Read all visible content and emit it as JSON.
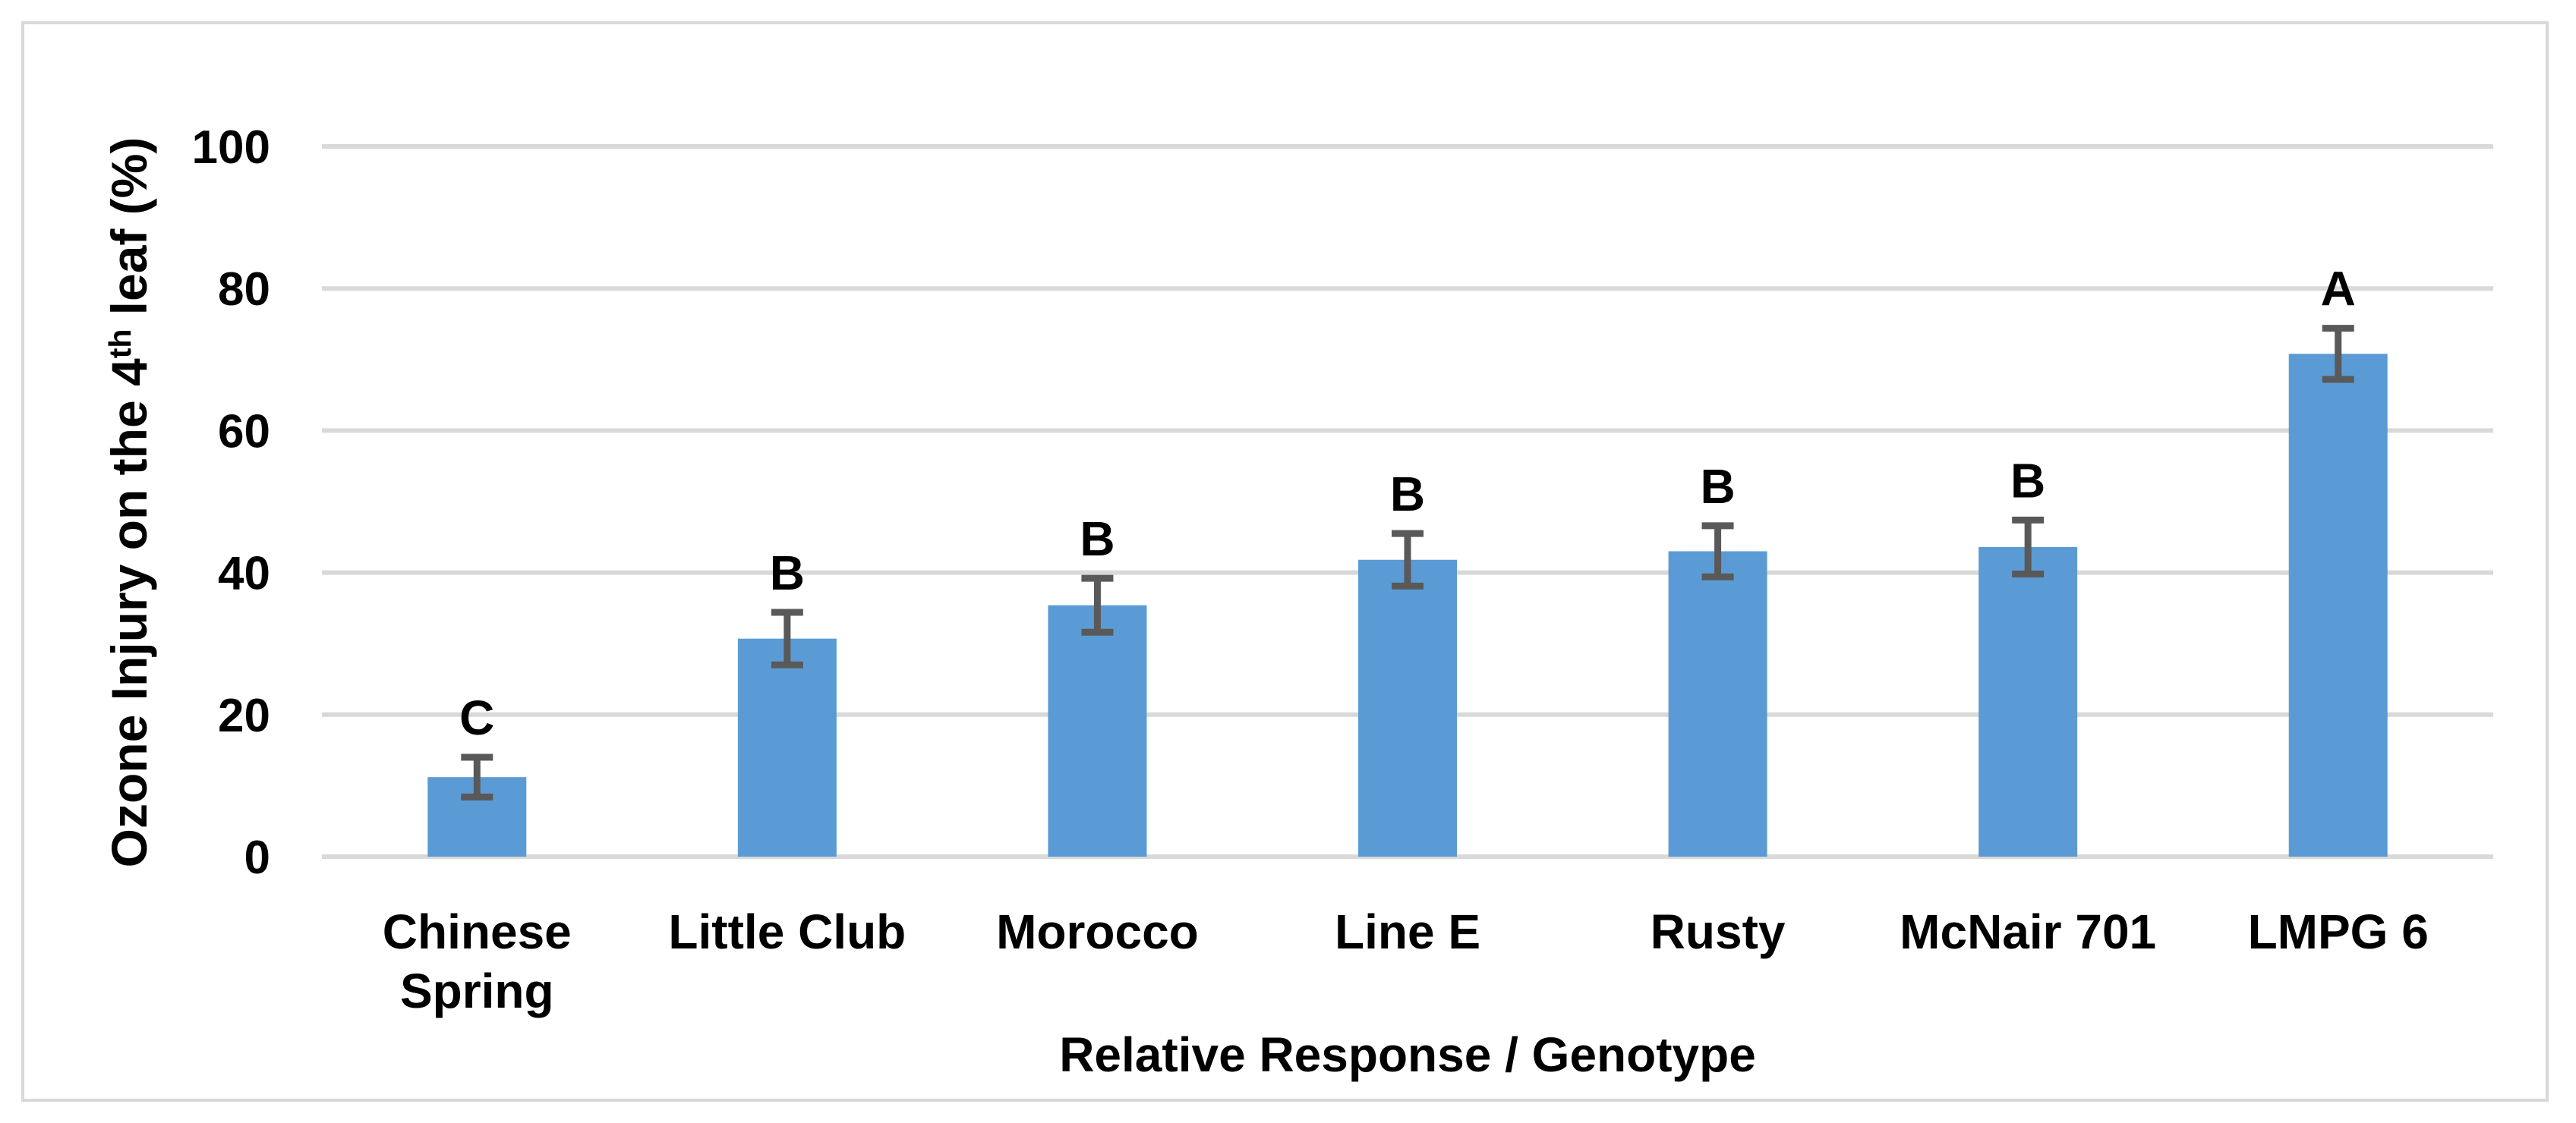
{
  "chart_data": {
    "type": "bar",
    "title": "",
    "xlabel": "Relative Response / Genotype",
    "ylabel": "Ozone Injury on the 4th leaf (%)",
    "ylabel_parts": {
      "pre": "Ozone Injury on the 4",
      "sup": "th",
      "post": " leaf (%)"
    },
    "categories": [
      "Chinese Spring",
      "Little Club",
      "Morocco",
      "Line E",
      "Rusty",
      "McNair 701",
      "LMPG 6"
    ],
    "category_display_lines": [
      [
        "Chinese",
        "Spring"
      ],
      [
        "Little Club"
      ],
      [
        "Morocco"
      ],
      [
        "Line E"
      ],
      [
        "Rusty"
      ],
      [
        "McNair 701"
      ],
      [
        "LMPG 6"
      ]
    ],
    "values": [
      11.2,
      30.7,
      35.4,
      41.8,
      43.0,
      43.6,
      70.8
    ],
    "error_bars": [
      2.8,
      3.7,
      3.8,
      3.7,
      3.6,
      3.8,
      3.6
    ],
    "significance_letters": [
      "C",
      "B",
      "B",
      "B",
      "B",
      "B",
      "A"
    ],
    "yticks": [
      0,
      20,
      40,
      60,
      80,
      100
    ],
    "ylim": [
      0,
      100
    ],
    "grid": "horizontal",
    "legend": "none",
    "bar_color": "#5B9BD5",
    "error_bar_color": "#595959",
    "gridline_color": "#D9D9D9",
    "border_color": "#D9D9D9",
    "text_color": "#000000",
    "background_color": "#FFFFFF"
  }
}
